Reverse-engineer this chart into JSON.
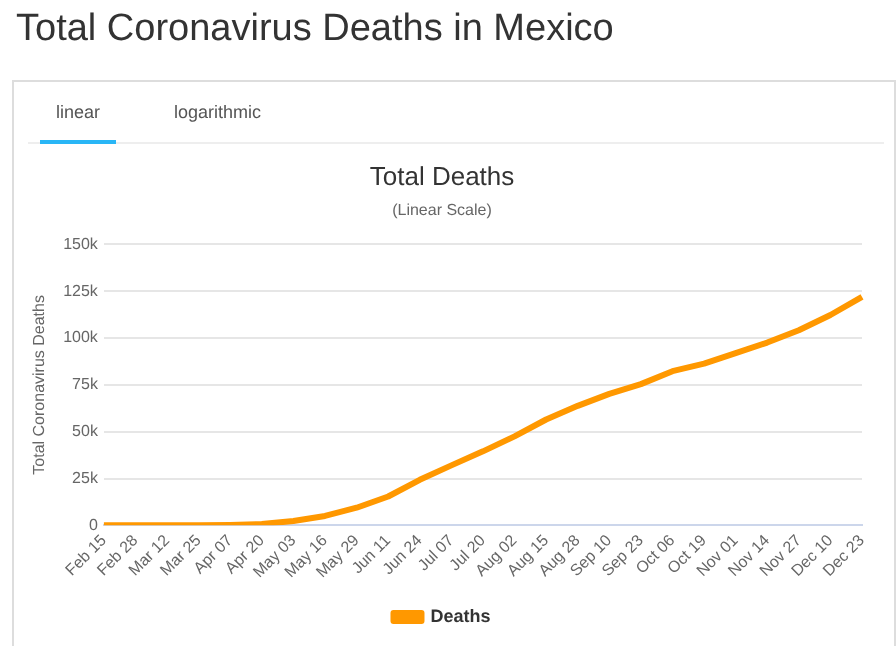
{
  "chart_data": {
    "type": "line",
    "title": "Total Coronavirus Deaths in Mexico",
    "subtitle": "Total Deaths",
    "ylabel": "Total Coronavirus Deaths",
    "annotations": [
      "(Linear Scale)",
      "linear",
      "logarithmic"
    ],
    "categories": [
      "Feb 15",
      "Feb 28",
      "Mar 12",
      "Mar 25",
      "Apr 07",
      "Apr 20",
      "May 03",
      "May 16",
      "May 29",
      "Jun 11",
      "Jun 24",
      "Jul 07",
      "Jul 20",
      "Aug 02",
      "Aug 15",
      "Aug 28",
      "Sep 10",
      "Sep 23",
      "Oct 06",
      "Oct 19",
      "Nov 01",
      "Nov 14",
      "Nov 27",
      "Dec 10",
      "Dec 23"
    ],
    "series": [
      {
        "name": "Deaths",
        "color": "#ff9800",
        "values": [
          0,
          0,
          0,
          0,
          200,
          700,
          2300,
          5000,
          9400,
          15400,
          24300,
          32000,
          39500,
          47500,
          56500,
          63800,
          70200,
          75400,
          82300,
          86300,
          91900,
          97600,
          104200,
          112300,
          122000
        ]
      }
    ],
    "ylim": [
      0,
      150000
    ],
    "yticks": [
      {
        "value": 0,
        "label": "0"
      },
      {
        "value": 25000,
        "label": "25k"
      },
      {
        "value": 50000,
        "label": "50k"
      },
      {
        "value": 75000,
        "label": "75k"
      },
      {
        "value": 100000,
        "label": "100k"
      },
      {
        "value": 125000,
        "label": "125k"
      },
      {
        "value": 150000,
        "label": "150k"
      }
    ],
    "grid": "y",
    "legend": "bottom"
  }
}
